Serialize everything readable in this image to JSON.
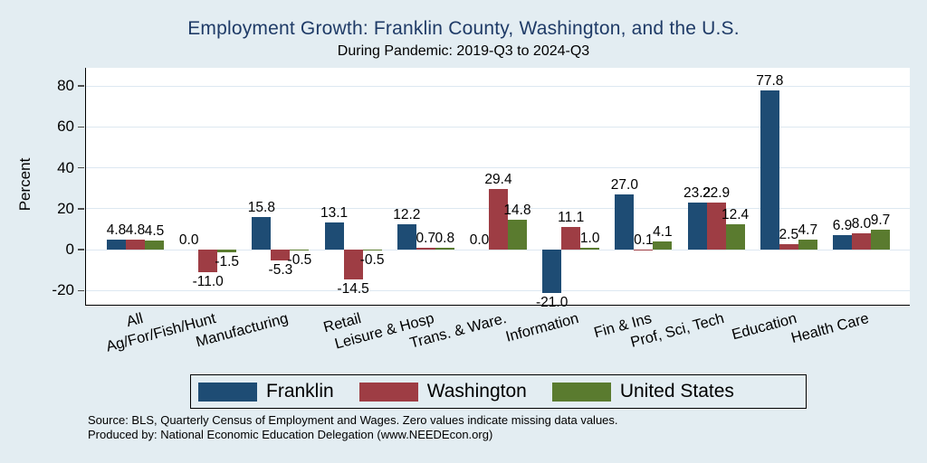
{
  "title": "Employment Growth: Franklin County, Washington, and the U.S.",
  "subtitle": "During Pandemic: 2019-Q3 to 2024-Q3",
  "colors": {
    "background": "#e3edf2",
    "plot_background": "#ffffff",
    "title_text": "#1f3b67",
    "gridline": "#dde8f1",
    "axis_line": "#000000"
  },
  "chart_data": {
    "type": "bar",
    "title": "Employment Growth: Franklin County, Washington, and the U.S.",
    "subtitle": "During Pandemic: 2019-Q3 to 2024-Q3",
    "xlabel": "",
    "ylabel": "Percent",
    "ylim": [
      -28,
      89
    ],
    "yticks": [
      -20,
      0,
      20,
      40,
      60,
      80
    ],
    "grid": true,
    "legend_position": "bottom",
    "value_labels": true,
    "categories": [
      "All",
      "Ag/For/Fish/Hunt",
      "Manufacturing",
      "Retail",
      "Leisure & Hosp",
      "Trans. & Ware.",
      "Information",
      "Fin & Ins",
      "Prof, Sci, Tech",
      "Education",
      "Health Care"
    ],
    "series": [
      {
        "name": "Franklin",
        "color": "#1e4c74",
        "values": [
          4.8,
          0.0,
          15.8,
          13.1,
          12.2,
          0.0,
          -21.0,
          27.0,
          23.2,
          77.8,
          6.9
        ]
      },
      {
        "name": "Washington",
        "color": "#9e3d44",
        "values": [
          4.8,
          -11.0,
          -5.3,
          -14.5,
          0.7,
          29.4,
          11.1,
          0.1,
          22.9,
          2.5,
          8.0
        ]
      },
      {
        "name": "United States",
        "color": "#5a7b2f",
        "values": [
          4.5,
          -1.5,
          -0.5,
          -0.5,
          0.8,
          14.8,
          1.0,
          4.1,
          12.4,
          4.7,
          9.7
        ]
      }
    ]
  },
  "footer": {
    "line1": "Source: BLS, Quarterly Census of Employment and Wages. Zero values indicate missing data values.",
    "line2": "Produced by: National Economic Education Delegation (www.NEEDEcon.org)"
  }
}
